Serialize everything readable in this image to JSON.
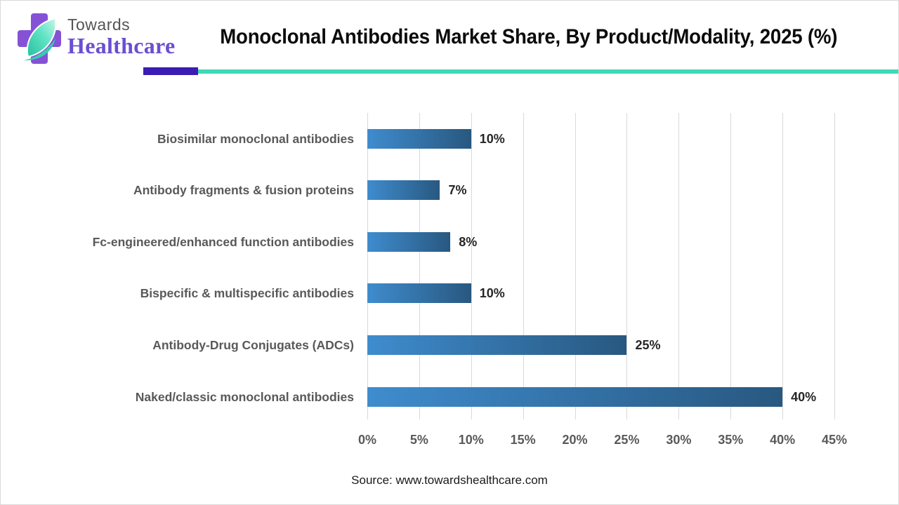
{
  "logo": {
    "line1": "Towards",
    "line2": "Healthcare"
  },
  "header": {
    "title": "Monoclonal Antibodies Market Share, By Product/Modality, 2025 (%)"
  },
  "chart_data": {
    "type": "bar",
    "orientation": "horizontal",
    "title": "Monoclonal Antibodies Market Share, By Product/Modality, 2025 (%)",
    "categories": [
      "Biosimilar monoclonal antibodies",
      "Antibody fragments & fusion proteins",
      "Fc-engineered/enhanced function antibodies",
      "Bispecific & multispecific antibodies",
      "Antibody-Drug Conjugates (ADCs)",
      "Naked/classic monoclonal antibodies"
    ],
    "values": [
      10,
      7,
      8,
      10,
      25,
      40
    ],
    "value_labels": [
      "10%",
      "7%",
      "8%",
      "10%",
      "25%",
      "40%"
    ],
    "xlabel": "",
    "ylabel": "",
    "xlim": [
      0,
      45
    ],
    "x_ticks": [
      "0%",
      "5%",
      "10%",
      "15%",
      "20%",
      "25%",
      "30%",
      "35%",
      "40%",
      "45%"
    ],
    "grid": "vertical",
    "legend": "none"
  },
  "colors": {
    "bar_gradient_start": "#3f8cce",
    "bar_gradient_end": "#285880",
    "grid": "#d9d9d9",
    "accent_indigo": "#3a1db3",
    "accent_teal": "#3fd9b6",
    "brand_purple": "#6a4fd0",
    "cross_purple": "#8552d6"
  },
  "footer": {
    "source": "Source: www.towardshealthcare.com"
  }
}
